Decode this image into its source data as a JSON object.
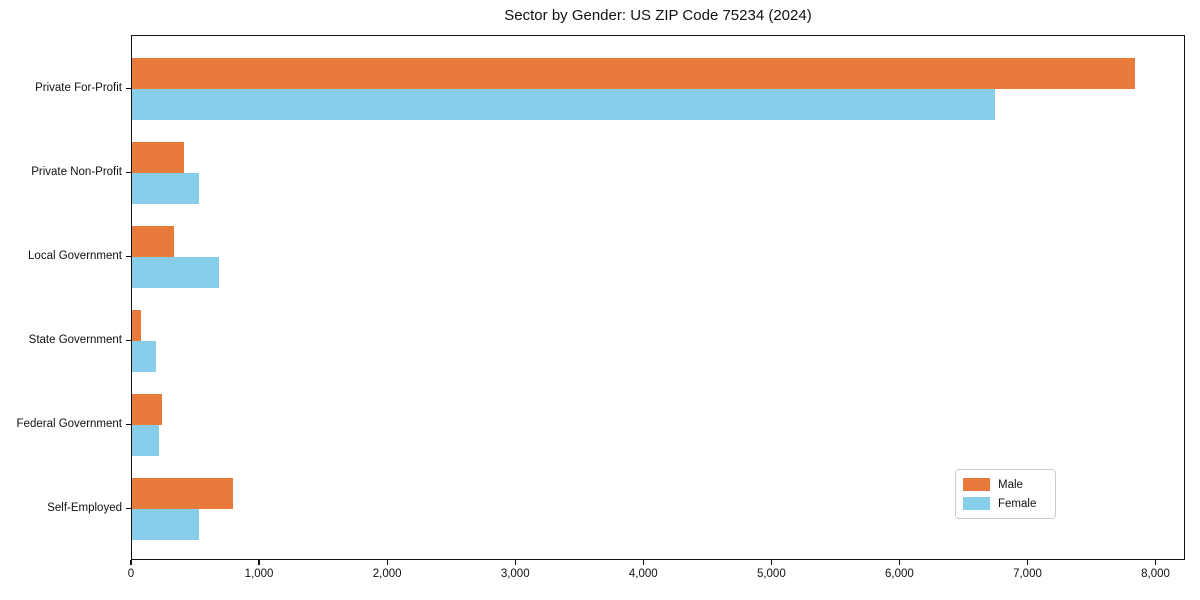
{
  "chart_data": {
    "type": "bar",
    "orientation": "horizontal",
    "title": "Sector by Gender: US ZIP Code 75234 (2024)",
    "categories": [
      "Private For-Profit",
      "Private Non-Profit",
      "Local Government",
      "State Government",
      "Federal Government",
      "Self-Employed"
    ],
    "series": [
      {
        "name": "Male",
        "color": "#e87b3c",
        "values": [
          7835,
          405,
          325,
          70,
          230,
          790
        ]
      },
      {
        "name": "Female",
        "color": "#87ceeb",
        "values": [
          6740,
          520,
          680,
          190,
          210,
          525
        ]
      }
    ],
    "xlabel": "",
    "ylabel": "",
    "xlim": [
      0,
      8230
    ],
    "xticks": [
      {
        "value": 0,
        "label": "0"
      },
      {
        "value": 1000,
        "label": "1,000"
      },
      {
        "value": 2000,
        "label": "2,000"
      },
      {
        "value": 3000,
        "label": "3,000"
      },
      {
        "value": 4000,
        "label": "4,000"
      },
      {
        "value": 5000,
        "label": "5,000"
      },
      {
        "value": 6000,
        "label": "6,000"
      },
      {
        "value": 7000,
        "label": "7,000"
      },
      {
        "value": 8000,
        "label": "8,000"
      }
    ],
    "grid": false,
    "legend": {
      "position": "lower-right",
      "entries": [
        "Male",
        "Female"
      ]
    }
  }
}
